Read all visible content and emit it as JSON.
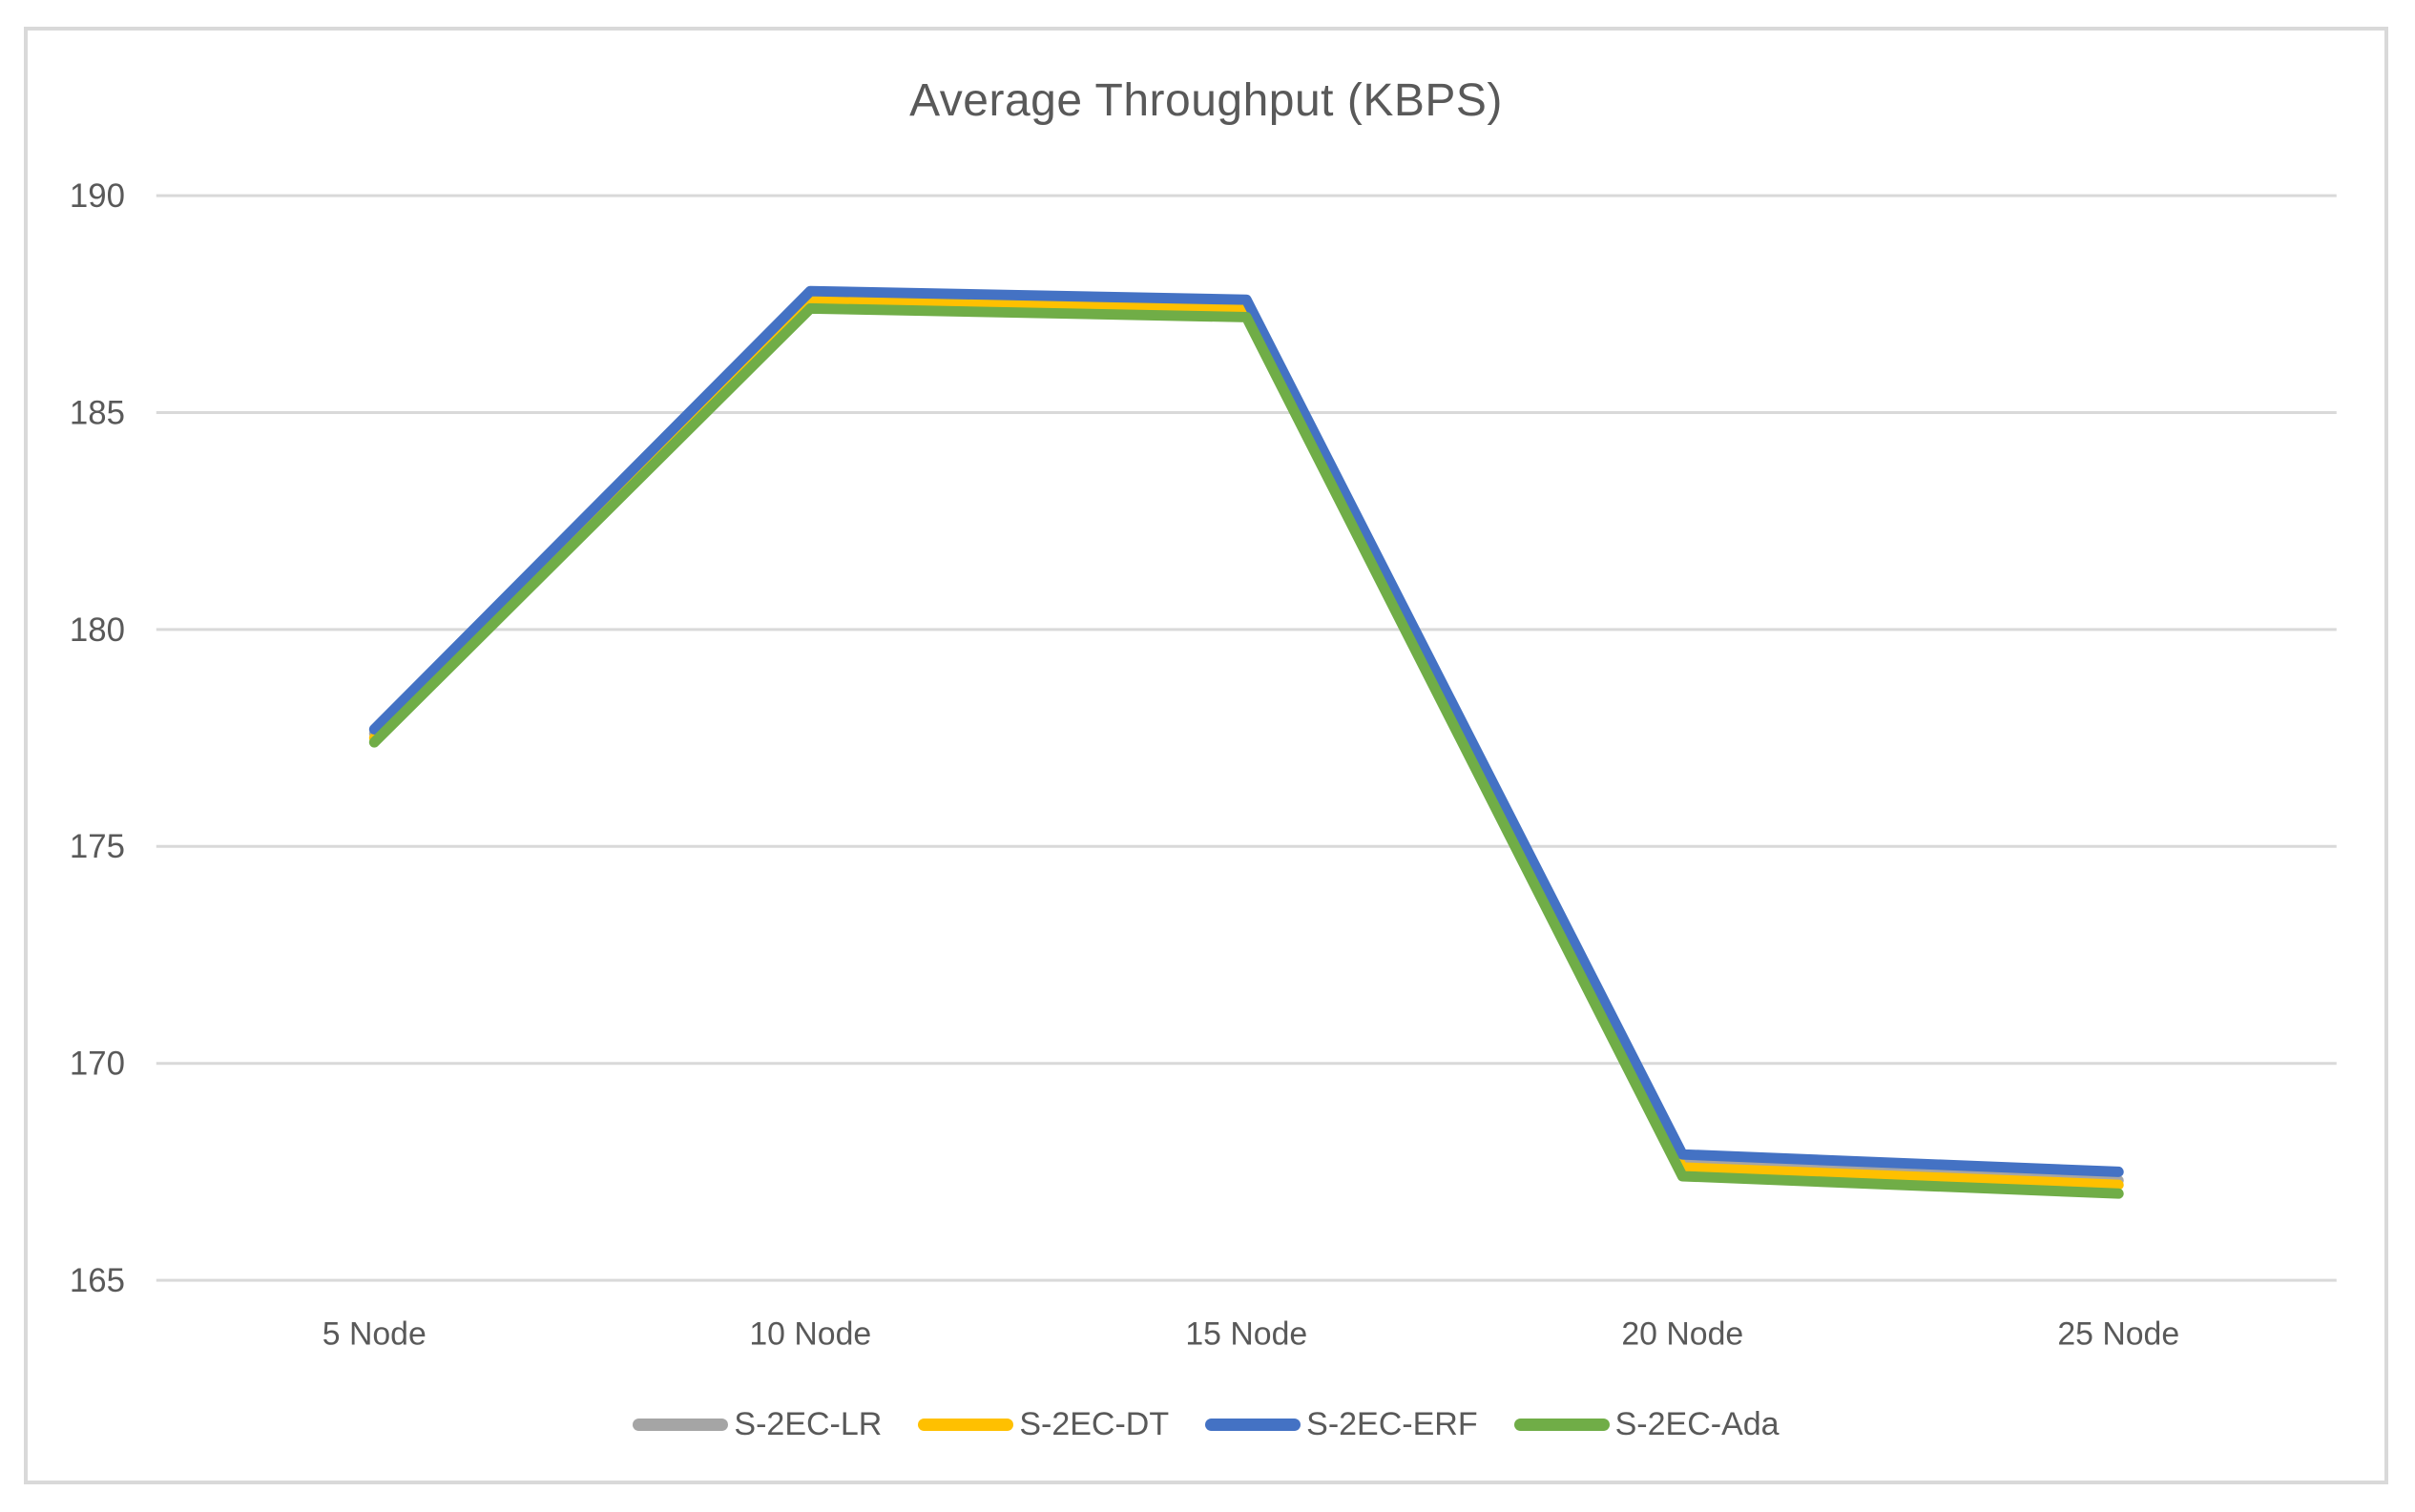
{
  "chart_data": {
    "type": "line",
    "title": "Average Throughput (KBPS)",
    "categories": [
      "5 Node",
      "10 Node",
      "15 Node",
      "20 Node",
      "25 Node"
    ],
    "series": [
      {
        "name": "S-2EC-LR",
        "color": "#a5a5a5",
        "values": [
          177.6,
          187.7,
          187.5,
          167.7,
          167.3
        ]
      },
      {
        "name": "S-2EC-DT",
        "color": "#ffc000",
        "values": [
          177.5,
          187.6,
          187.4,
          167.6,
          167.2
        ]
      },
      {
        "name": "S-2EC-ERF",
        "color": "#4472c4",
        "values": [
          177.7,
          187.8,
          187.6,
          167.9,
          167.5
        ]
      },
      {
        "name": "S-2EC-Ada",
        "color": "#70ad47",
        "values": [
          177.4,
          187.4,
          187.2,
          167.4,
          167.0
        ]
      }
    ],
    "xlabel": "",
    "ylabel": "",
    "ylim": [
      165,
      190
    ],
    "yticks": [
      190,
      185,
      180,
      175,
      170,
      165
    ],
    "grid": true,
    "legend_position": "bottom"
  },
  "style": {
    "frame_border_color": "#d9d9d9",
    "grid_color": "#d9d9d9",
    "text_color": "#595959",
    "plot_background": "#ffffff"
  }
}
